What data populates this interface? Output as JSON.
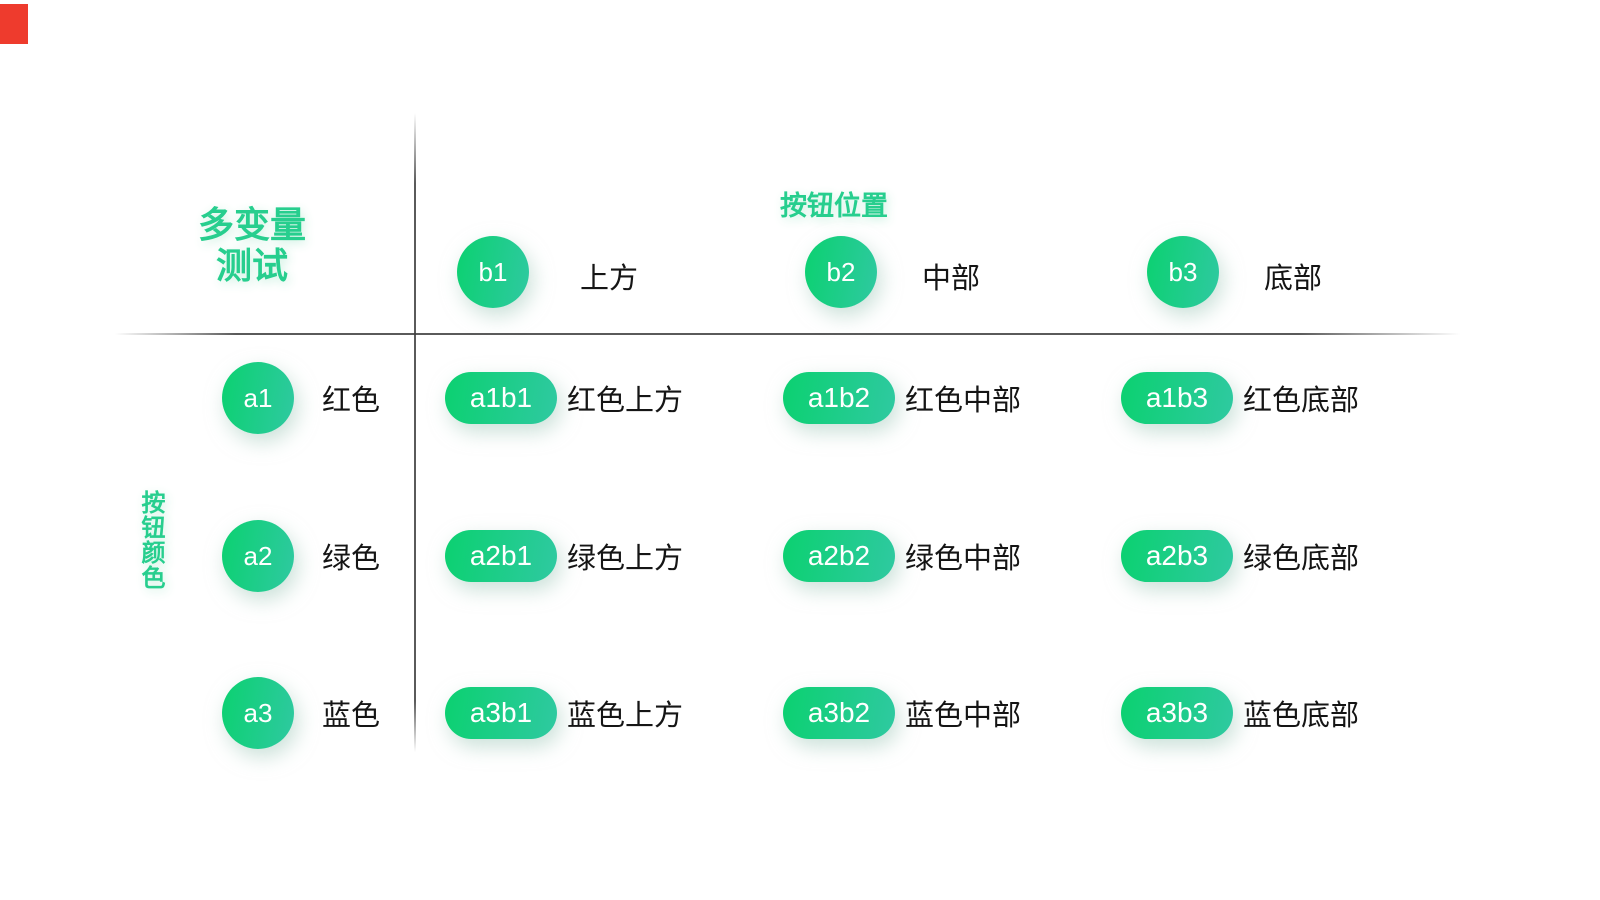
{
  "title": {
    "line1": "多变量",
    "line2": "测试"
  },
  "column_axis": {
    "label": "按钮位置"
  },
  "row_axis": {
    "label": "按钮颜色"
  },
  "columns": [
    {
      "id": "b1",
      "label": "上方"
    },
    {
      "id": "b2",
      "label": "中部"
    },
    {
      "id": "b3",
      "label": "底部"
    }
  ],
  "rows": [
    {
      "id": "a1",
      "label": "红色"
    },
    {
      "id": "a2",
      "label": "绿色"
    },
    {
      "id": "a3",
      "label": "蓝色"
    }
  ],
  "cells": [
    {
      "id": "a1b1",
      "label": "红色上方"
    },
    {
      "id": "a1b2",
      "label": "红色中部"
    },
    {
      "id": "a1b3",
      "label": "红色底部"
    },
    {
      "id": "a2b1",
      "label": "绿色上方"
    },
    {
      "id": "a2b2",
      "label": "绿色中部"
    },
    {
      "id": "a2b3",
      "label": "绿色底部"
    },
    {
      "id": "a3b1",
      "label": "蓝色上方"
    },
    {
      "id": "a3b2",
      "label": "蓝色中部"
    },
    {
      "id": "a3b3",
      "label": "蓝色底部"
    }
  ],
  "colors": {
    "accent_green": "#27ce8e",
    "button_gradient_start": "#0bd170",
    "button_gradient_end": "#2fc9a1",
    "label_text": "#151515",
    "divider": "#3d3d3d",
    "corner_marker": "#ee3b2d"
  }
}
